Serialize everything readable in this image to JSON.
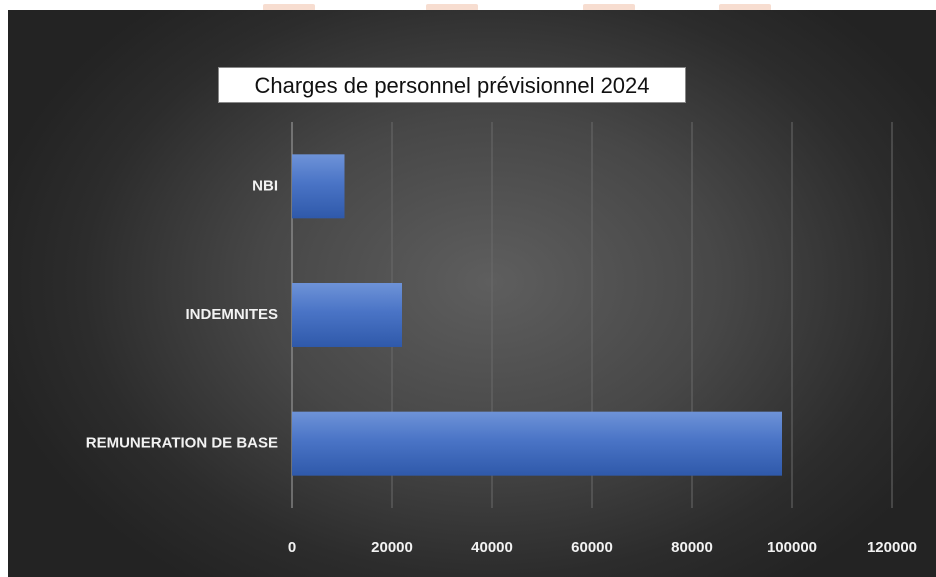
{
  "chart_data": {
    "type": "bar",
    "orientation": "horizontal",
    "title": "Charges de personnel prévisionnel 2024",
    "categories": [
      "NBI",
      "INDEMNITES",
      "REMUNERATION DE BASE"
    ],
    "values": [
      10500,
      22000,
      98000
    ],
    "xlim": [
      0,
      120000
    ],
    "xticks": [
      "0",
      "20000",
      "40000",
      "60000",
      "80000",
      "100000",
      "120000"
    ],
    "grid": "vertical",
    "legend": "none",
    "bar_color": "#4472c4",
    "background": "dark"
  }
}
